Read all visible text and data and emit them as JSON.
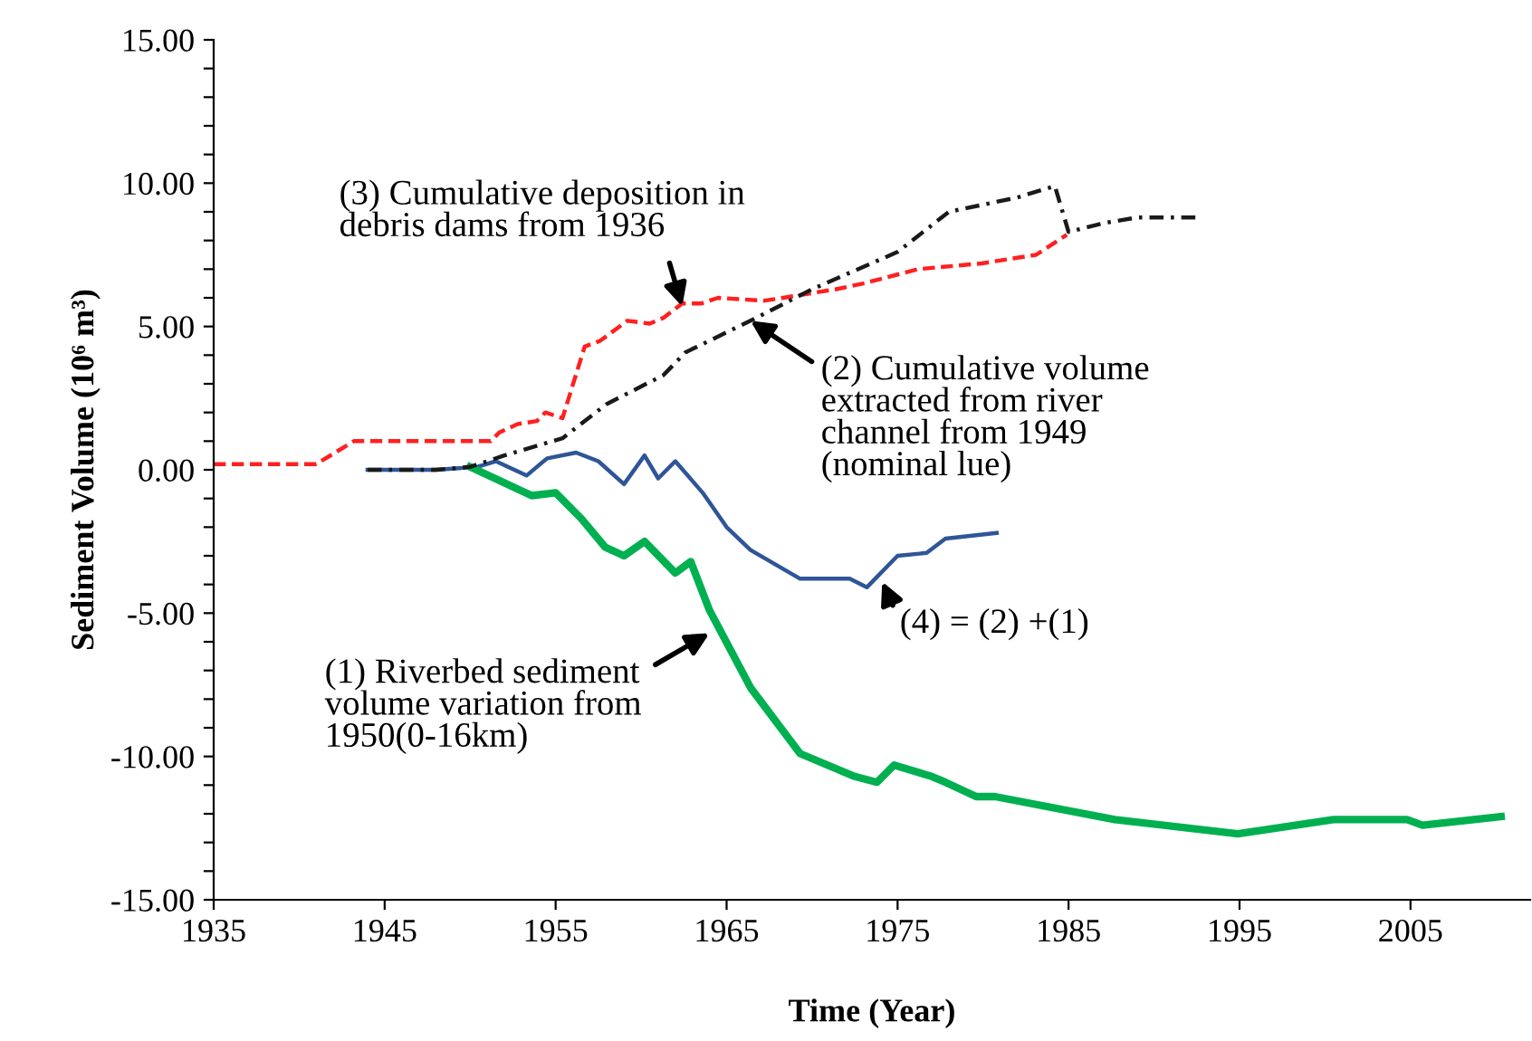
{
  "chart_data": {
    "type": "line",
    "xlabel": "Time (Year)",
    "ylabel": "Sediment Volume (10⁶ m³)",
    "xlim": [
      1935,
      2012
    ],
    "xticks": [
      1935,
      1945,
      1955,
      1965,
      1975,
      1985,
      1995,
      2005
    ],
    "ylim": [
      -15,
      15
    ],
    "yticks": [
      {
        "value": -15,
        "label": "-15.00"
      },
      {
        "value": -14,
        "label": null
      },
      {
        "value": -13,
        "label": null
      },
      {
        "value": -12,
        "label": null
      },
      {
        "value": -11,
        "label": null
      },
      {
        "value": -10,
        "label": "-10.00"
      },
      {
        "value": -9,
        "label": null
      },
      {
        "value": -8,
        "label": null
      },
      {
        "value": -7,
        "label": null
      },
      {
        "value": -6,
        "label": null
      },
      {
        "value": -5,
        "label": "-5.00"
      },
      {
        "value": -4,
        "label": null
      },
      {
        "value": -3,
        "label": null
      },
      {
        "value": -2,
        "label": null
      },
      {
        "value": -1,
        "label": null
      },
      {
        "value": 0,
        "label": "0.00"
      },
      {
        "value": 1,
        "label": null
      },
      {
        "value": 2,
        "label": null
      },
      {
        "value": 3,
        "label": null
      },
      {
        "value": 4,
        "label": null
      },
      {
        "value": 5,
        "label": "5.00"
      },
      {
        "value": 6,
        "label": null
      },
      {
        "value": 7,
        "label": null
      },
      {
        "value": 8,
        "label": null
      },
      {
        "value": 9,
        "label": null
      },
      {
        "value": 10,
        "label": "10.00"
      },
      {
        "value": 11,
        "label": null
      },
      {
        "value": 12,
        "label": null
      },
      {
        "value": 13,
        "label": null
      },
      {
        "value": 14,
        "label": null
      },
      {
        "value": 15,
        "label": "15.00"
      }
    ],
    "grid": false,
    "legend": false,
    "marker": "none",
    "series": [
      {
        "color": "#ff2020",
        "line_style": "dashed",
        "x": [
          1935,
          1941,
          1943.2,
          1951.2,
          1951.7,
          1952.8,
          1953.9,
          1954.4,
          1955.4,
          1956.7,
          1957.6,
          1959.2,
          1960.5,
          1961.3,
          1962.4,
          1963.5,
          1964.5,
          1967.2,
          1968.3,
          1971.4,
          1973,
          1976.2,
          1979.9,
          1983.1,
          1984.9
        ],
        "values": [
          0.2,
          0.2,
          1.0,
          1.0,
          1.3,
          1.6,
          1.7,
          2.0,
          1.8,
          4.3,
          4.5,
          5.2,
          5.1,
          5.3,
          5.8,
          5.8,
          6.0,
          5.9,
          6.0,
          6.3,
          6.5,
          7.0,
          7.2,
          7.5,
          8.2
        ]
      },
      {
        "color": "#1a1a1a",
        "line_style": "dashdot",
        "x": [
          1944,
          1948,
          1950,
          1952,
          1955.4,
          1958,
          1961.3,
          1962.6,
          1966.4,
          1970,
          1975,
          1978,
          1982,
          1984.2,
          1985,
          1987,
          1989,
          1992.5
        ],
        "values": [
          0,
          0,
          0.1,
          0.5,
          1.1,
          2.3,
          3.3,
          4.1,
          5.2,
          6.3,
          7.6,
          9.0,
          9.5,
          9.9,
          8.3,
          8.6,
          8.8,
          8.8
        ]
      },
      {
        "color": "#2f5597",
        "line_style": "solid",
        "x": [
          1944,
          1948,
          1950.4,
          1951.5,
          1953.3,
          1954.5,
          1956.2,
          1957.5,
          1959,
          1960.2,
          1961,
          1962,
          1963.6,
          1965,
          1966.4,
          1969.3,
          1972.2,
          1973.2,
          1975,
          1976.7,
          1977.8,
          1980.8
        ],
        "values": [
          0,
          0,
          0.1,
          0.3,
          -0.2,
          0.4,
          0.6,
          0.3,
          -0.5,
          0.5,
          -0.3,
          0.3,
          -0.8,
          -2.0,
          -2.8,
          -3.8,
          -3.8,
          -4.1,
          -3.0,
          -2.9,
          -2.4,
          -2.2
        ]
      },
      {
        "color": "#00b050",
        "line_style": "solid",
        "x": [
          1950,
          1953.6,
          1955,
          1956.5,
          1957.9,
          1959,
          1960.2,
          1962,
          1962.9,
          1964,
          1966.4,
          1969.3,
          1972.5,
          1973.8,
          1974.8,
          1977,
          1977.8,
          1979.6,
          1980.7,
          1987.7,
          1994.9,
          2000.5,
          2004.8,
          2005.7,
          2010.3
        ],
        "values": [
          0.1,
          -0.9,
          -0.8,
          -1.7,
          -2.7,
          -3.0,
          -2.5,
          -3.6,
          -3.2,
          -4.9,
          -7.6,
          -9.9,
          -10.7,
          -10.9,
          -10.3,
          -10.7,
          -10.9,
          -11.4,
          -11.4,
          -12.2,
          -12.7,
          -12.2,
          -12.2,
          -12.4,
          -12.1
        ]
      }
    ],
    "annotations": [
      {
        "text": "(3) Cumulative deposition in\ndebris dams from 1936",
        "x": 1962.4,
        "y": 5.7
      },
      {
        "text": "(2) Cumulative volume\nextracted from river\nchannel from 1949\n(nominal lue)",
        "x": 1966.4,
        "y": 5.2
      },
      {
        "text": "(4) = (2) +(1)",
        "x": 1974.1,
        "y": -3.9
      },
      {
        "text": "(1) Riverbed sediment\nvolume variation from\n1950(0-16km)",
        "x": 1964,
        "y": -5.7
      }
    ]
  }
}
